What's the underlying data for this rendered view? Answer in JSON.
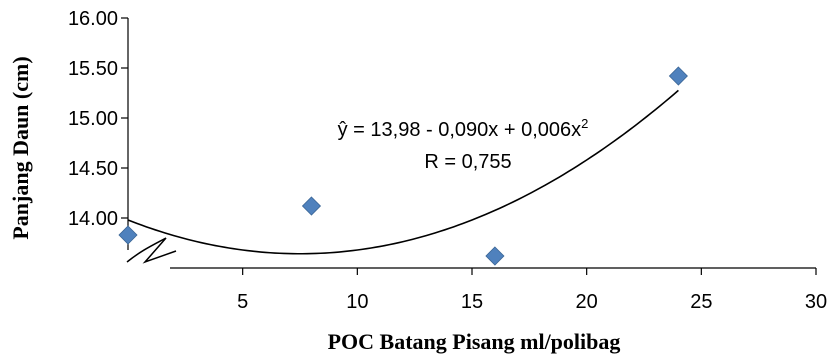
{
  "chart_data": {
    "type": "scatter",
    "title": "",
    "xlabel": "POC Batang Pisang ml/polibag",
    "ylabel": "Panjang Daun (cm)",
    "xlim": [
      0,
      30
    ],
    "ylim": [
      13.5,
      16.0
    ],
    "xticks": [
      5,
      10,
      15,
      20,
      25,
      30
    ],
    "xtick_labels": [
      "5",
      "10",
      "15",
      "20",
      "25",
      "30"
    ],
    "yticks": [
      14.0,
      14.5,
      15.0,
      15.5,
      16.0
    ],
    "ytick_labels": [
      "14.00",
      "14.50",
      "15.00",
      "15.50",
      "16.00"
    ],
    "grid": false,
    "legend": "none",
    "marker_color": "#4F81BD",
    "series": [
      {
        "x": [
          0,
          8,
          16,
          24
        ],
        "y": [
          13.83,
          14.12,
          13.62,
          15.42
        ]
      }
    ],
    "trendline": {
      "type": "polynomial",
      "coefficients": [
        13.98,
        -0.09,
        0.006
      ],
      "x_range": [
        0,
        24
      ]
    },
    "annotations": {
      "equation": "ŷ = 13,98 - 0,090x + 0,006x",
      "equation_sup": "2",
      "r_value": "R = 0,755"
    }
  }
}
